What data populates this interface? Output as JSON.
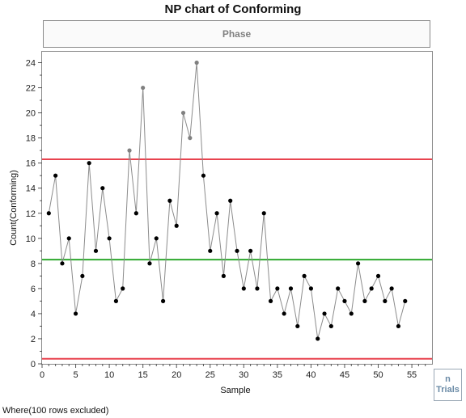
{
  "chart_data": {
    "type": "line",
    "title": "NP chart of Conforming",
    "phase_label": "Phase",
    "xlabel": "Sample",
    "ylabel": "Count(Conforming)",
    "xlim": [
      0,
      58
    ],
    "ylim": [
      0,
      25
    ],
    "x_ticks": [
      0,
      5,
      10,
      15,
      20,
      25,
      30,
      35,
      40,
      45,
      50,
      55
    ],
    "y_ticks": [
      0,
      2,
      4,
      6,
      8,
      10,
      12,
      14,
      16,
      18,
      20,
      22,
      24
    ],
    "x": [
      1,
      2,
      3,
      4,
      5,
      6,
      7,
      8,
      9,
      10,
      11,
      12,
      13,
      14,
      15,
      16,
      17,
      18,
      19,
      20,
      21,
      22,
      23,
      24,
      25,
      26,
      27,
      28,
      29,
      30,
      31,
      32,
      33,
      34,
      35,
      36,
      37,
      38,
      39,
      40,
      41,
      42,
      43,
      44,
      45,
      46,
      47,
      48,
      49,
      50,
      51,
      52,
      53,
      54
    ],
    "values": [
      12,
      15,
      8,
      10,
      4,
      7,
      16,
      9,
      14,
      10,
      5,
      6,
      17,
      12,
      22,
      8,
      10,
      5,
      13,
      11,
      20,
      18,
      24,
      15,
      9,
      12,
      7,
      13,
      9,
      6,
      9,
      6,
      12,
      5,
      6,
      4,
      6,
      3,
      7,
      6,
      2,
      4,
      3,
      6,
      5,
      4,
      8,
      5,
      6,
      7,
      5,
      6,
      3,
      5
    ],
    "out_of_limit_color": "#808080",
    "point_color": "#000000",
    "line_color": "#8c8c8c",
    "control_limits": {
      "ucl": 16.3,
      "center": 8.3,
      "lcl": 0.4,
      "limit_color": "#e8434f",
      "center_color": "#2ea82e"
    },
    "grid": false
  },
  "side_box": {
    "line1": "n",
    "line2": "Trials"
  },
  "footer": "Where(100 rows excluded)"
}
